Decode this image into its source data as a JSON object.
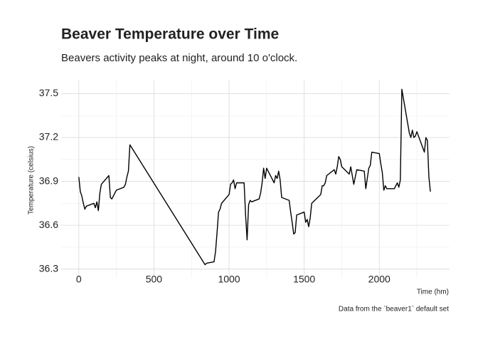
{
  "chart_data": {
    "type": "line",
    "title": "Beaver Temperature over Time",
    "subtitle": "Beavers activity peaks at night, around 10 o'clock.",
    "x_label": "Time (hm)",
    "y_label": "Temperature (celsius)",
    "caption": "Data from the `beaver1` default set",
    "grid": true,
    "xlim": [
      -117.5,
      2467.5
    ],
    "xticks": [
      0,
      500,
      1000,
      1500,
      2000
    ],
    "xminorticks": [
      250,
      750,
      1250,
      1750,
      2250
    ],
    "ylim": [
      36.24,
      37.59
    ],
    "yticks": [
      36.3,
      36.6,
      36.9,
      37.2,
      37.5
    ],
    "yminorticks": [
      36.45,
      36.75,
      37.05,
      37.35
    ],
    "series": [
      {
        "color": "#000000",
        "x": [
          0,
          10,
          20,
          30,
          40,
          50,
          100,
          110,
          120,
          130,
          140,
          150,
          200,
          210,
          220,
          230,
          240,
          250,
          300,
          310,
          320,
          330,
          340,
          840,
          850,
          900,
          910,
          920,
          930,
          940,
          950,
          1000,
          1010,
          1020,
          1030,
          1040,
          1050,
          1100,
          1110,
          1120,
          1130,
          1140,
          1150,
          1200,
          1210,
          1220,
          1230,
          1240,
          1250,
          1300,
          1310,
          1320,
          1330,
          1340,
          1350,
          1400,
          1410,
          1420,
          1430,
          1440,
          1450,
          1500,
          1510,
          1520,
          1530,
          1540,
          1550,
          1600,
          1610,
          1620,
          1630,
          1640,
          1650,
          1700,
          1710,
          1720,
          1730,
          1740,
          1750,
          1800,
          1810,
          1820,
          1830,
          1840,
          1850,
          1900,
          1910,
          1920,
          1930,
          1940,
          1950,
          2000,
          2010,
          2020,
          2030,
          2040,
          2050,
          2100,
          2110,
          2120,
          2130,
          2140,
          2150,
          2200,
          2210,
          2220,
          2230,
          2240,
          2250,
          2300,
          2310,
          2320,
          2330,
          2340
        ],
        "values": [
          36.93,
          36.83,
          36.8,
          36.75,
          36.71,
          36.73,
          36.75,
          36.72,
          36.76,
          36.7,
          36.82,
          36.88,
          36.94,
          36.79,
          36.78,
          36.8,
          36.82,
          36.84,
          36.86,
          36.88,
          36.93,
          36.97,
          37.15,
          36.33,
          36.34,
          36.35,
          36.42,
          36.55,
          36.69,
          36.71,
          36.75,
          36.81,
          36.88,
          36.89,
          36.91,
          36.85,
          36.89,
          36.89,
          36.67,
          36.5,
          36.74,
          36.77,
          36.76,
          36.78,
          36.82,
          36.89,
          36.99,
          36.92,
          36.99,
          36.89,
          36.94,
          36.92,
          36.97,
          36.91,
          36.79,
          36.77,
          36.69,
          36.62,
          36.54,
          36.55,
          36.67,
          36.69,
          36.62,
          36.64,
          36.59,
          36.65,
          36.75,
          36.8,
          36.81,
          36.87,
          36.87,
          36.89,
          36.94,
          36.98,
          36.95,
          37.0,
          37.07,
          37.05,
          37.0,
          36.95,
          37.0,
          36.94,
          36.88,
          36.93,
          36.98,
          36.97,
          36.85,
          36.92,
          36.99,
          37.01,
          37.1,
          37.09,
          37.02,
          36.96,
          36.84,
          36.87,
          36.85,
          36.85,
          36.87,
          36.89,
          36.86,
          36.91,
          37.53,
          37.23,
          37.2,
          37.25,
          37.2,
          37.21,
          37.24,
          37.1,
          37.2,
          37.18,
          36.93,
          36.83
        ]
      }
    ]
  }
}
